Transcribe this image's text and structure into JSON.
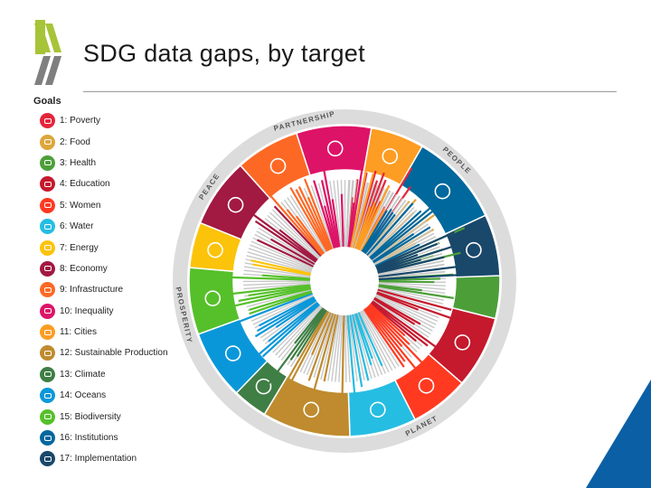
{
  "title": "SDG data gaps, by target",
  "legend_heading": "Goals",
  "goals": [
    {
      "label": "1: Poverty",
      "color": "#e5243b",
      "icon": "people-icon"
    },
    {
      "label": "2: Food",
      "color": "#dda63a",
      "icon": "bowl-icon"
    },
    {
      "label": "3: Health",
      "color": "#4c9f38",
      "icon": "heartbeat-icon"
    },
    {
      "label": "4: Education",
      "color": "#c5192d",
      "icon": "book-icon"
    },
    {
      "label": "5: Women",
      "color": "#ff3a21",
      "icon": "gender-icon"
    },
    {
      "label": "6: Water",
      "color": "#26bde2",
      "icon": "water-drop-icon"
    },
    {
      "label": "7: Energy",
      "color": "#fcc30b",
      "icon": "sun-icon"
    },
    {
      "label": "8: Economy",
      "color": "#a21942",
      "icon": "growth-chart-icon"
    },
    {
      "label": "9: Infrastructure",
      "color": "#fd6925",
      "icon": "cubes-icon"
    },
    {
      "label": "10: Inequality",
      "color": "#dd1367",
      "icon": "equals-icon"
    },
    {
      "label": "11: Cities",
      "color": "#fd9d24",
      "icon": "buildings-icon"
    },
    {
      "label": "12: Sustainable Production",
      "color": "#bf8b2e",
      "icon": "infinity-icon"
    },
    {
      "label": "13: Climate",
      "color": "#3f7e44",
      "icon": "eye-globe-icon"
    },
    {
      "label": "14: Oceans",
      "color": "#0a97d9",
      "icon": "fish-icon"
    },
    {
      "label": "15: Biodiversity",
      "color": "#56c02b",
      "icon": "tree-icon"
    },
    {
      "label": "16: Institutions",
      "color": "#00689d",
      "icon": "dove-icon"
    },
    {
      "label": "17: Implementation",
      "color": "#19486a",
      "icon": "flower-icon"
    }
  ],
  "ring_labels": {
    "people": "PEOPLE",
    "planet": "PLANET",
    "prosperity": "PROSPERITY",
    "peace": "PEACE",
    "partnership": "PARTNERSHIP"
  },
  "colors": {
    "outer_ring": "#dcdcdc",
    "logo_green": "#a7c438",
    "logo_gray": "#7f7f7f",
    "corner_blue": "#0b5fa5",
    "missing_bar": "#c8c8c8"
  }
}
